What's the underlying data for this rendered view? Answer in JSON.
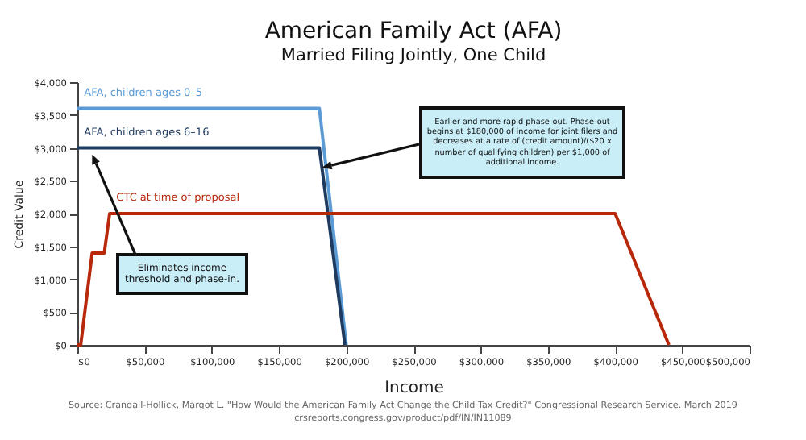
{
  "chart_data": {
    "type": "line",
    "title": "American Family Act (AFA)",
    "subtitle": "Married Filing Jointly, One Child",
    "xlabel": "Income",
    "ylabel": "Credit Value",
    "series": [
      {
        "name": "AFA, children ages 0–5",
        "color": "#5b9bd5",
        "x": [
          0,
          180000,
          200000
        ],
        "values": [
          3600,
          3600,
          0
        ]
      },
      {
        "name": "AFA, children ages 6–16",
        "color": "#1f3a5f",
        "x": [
          0,
          180000,
          199000
        ],
        "values": [
          3000,
          3000,
          0
        ]
      },
      {
        "name": "CTC at time of proposal",
        "color": "#b8290c",
        "x": [
          0,
          2500,
          11000,
          20000,
          24000,
          400000,
          440000
        ],
        "values": [
          0,
          0,
          1400,
          1400,
          2000,
          2000,
          0
        ]
      }
    ],
    "xlim": [
      0,
      500000
    ],
    "xticks": [
      {
        "value": 0,
        "label": "$0"
      },
      {
        "value": 50000,
        "label": "$50,000"
      },
      {
        "value": 100000,
        "label": "$100,000"
      },
      {
        "value": 150000,
        "label": "$150,000"
      },
      {
        "value": 200000,
        "label": "$200,000"
      },
      {
        "value": 250000,
        "label": "$250,000"
      },
      {
        "value": 300000,
        "label": "$300,000"
      },
      {
        "value": 350000,
        "label": "$350,000"
      },
      {
        "value": 400000,
        "label": "$400,000"
      },
      {
        "value": 450000,
        "label": "$450,000"
      },
      {
        "value": 500000,
        "label": "$500,000"
      }
    ],
    "ylim": [
      0,
      4000
    ],
    "yticks": [
      {
        "value": 0,
        "label": "$0"
      },
      {
        "value": 500,
        "label": "$500"
      },
      {
        "value": 1000,
        "label": "$1,000"
      },
      {
        "value": 1500,
        "label": "$1,500"
      },
      {
        "value": 2000,
        "label": "$2,000"
      },
      {
        "value": 2500,
        "label": "$2,500"
      },
      {
        "value": 3000,
        "label": "$3,000"
      },
      {
        "value": 3500,
        "label": "$3,500"
      },
      {
        "value": 4000,
        "label": "$4,000"
      }
    ],
    "grid": false,
    "legend": false,
    "marker": "none",
    "line_style": "solid",
    "annotations": [
      {
        "text": "Earlier and more rapid phase-out. Phase-out begins at $180,000 of income for joint filers and decreases at a rate of (credit amount)/($20 x number of qualifying children) per $1,000 of additional income.",
        "x": 182000,
        "y": 2700
      },
      {
        "text": "Eliminates income threshold and phase-in.",
        "x": 11000,
        "y": 2900
      },
      "Source: Crandall-Hollick, Margot L. \"How Would the American Family Act Change the Child Tax Credit?\" Congressional Research Service. March 2019\ncrsreports.congress.gov/product/pdf/IN/IN11089"
    ]
  }
}
